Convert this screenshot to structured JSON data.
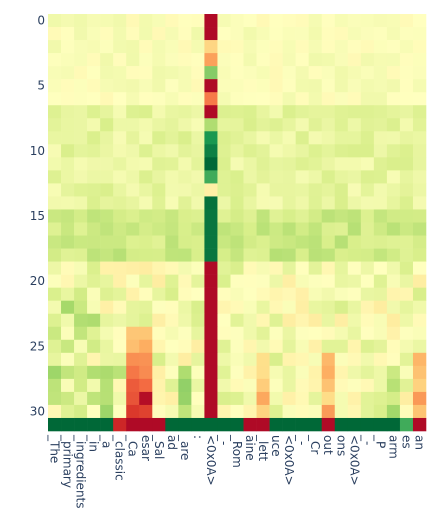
{
  "chart_data": {
    "type": "heatmap",
    "x_tokens": [
      "_The",
      "_primary",
      "_ingredients",
      "_in",
      "_a",
      "_classic",
      "_Ca",
      "esar",
      "_Sal",
      "ad",
      "_are",
      ":",
      "<0x0A>",
      "_-",
      "_Rom",
      "aine",
      "_lett",
      "uce",
      "<0x0A>",
      "_-",
      "_Cr",
      "out",
      "ons",
      "<0x0A>",
      "_-",
      "_P",
      "arm",
      "es",
      "an"
    ],
    "y_ticks": [
      "0",
      "5",
      "10",
      "15",
      "20",
      "25",
      "30"
    ],
    "y_tick_values": [
      0,
      5,
      10,
      15,
      20,
      25,
      30
    ],
    "rows": 32,
    "colorscale": [
      "#006837",
      "#1a9850",
      "#66bd63",
      "#a6d96a",
      "#d9ef8b",
      "#ffffbf",
      "#fee08b",
      "#fdae61",
      "#f46d43",
      "#d73027",
      "#a50026"
    ]
  }
}
